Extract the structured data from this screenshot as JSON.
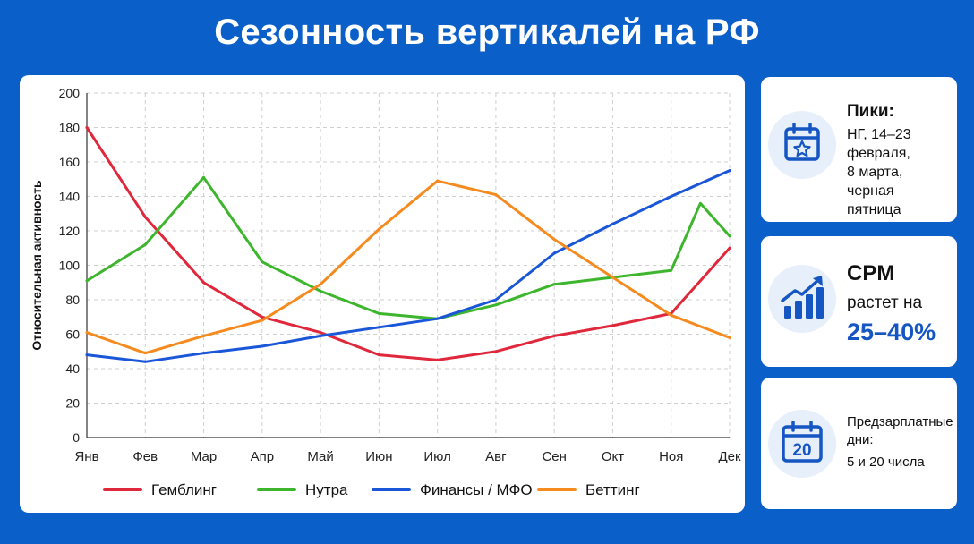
{
  "page": {
    "title": "Сезонность вертикалей на РФ"
  },
  "chart_data": {
    "type": "line",
    "title": "",
    "xlabel": "",
    "ylabel": "Относительная активность",
    "ylim": [
      0,
      200
    ],
    "yticks": [
      0,
      20,
      40,
      60,
      80,
      100,
      120,
      140,
      160,
      180,
      200
    ],
    "grid": true,
    "legend": "bottom",
    "categories": [
      "Янв",
      "Фев",
      "Мар",
      "Апр",
      "Май",
      "Июн",
      "Июл",
      "Авг",
      "Сен",
      "Окт",
      "Ноя",
      "Дек"
    ],
    "series": [
      {
        "name": "Гемблинг",
        "color": "#e0283c",
        "values": [
          180,
          128,
          90,
          70,
          61,
          48,
          45,
          50,
          59,
          65,
          72,
          110
        ]
      },
      {
        "name": "Нутра",
        "color": "#3db52c",
        "values": [
          91,
          112,
          151,
          102,
          85,
          72,
          69,
          77,
          89,
          93,
          97,
          117
        ],
        "extra_points": [
          {
            "x": 10.5,
            "y": 136
          }
        ]
      },
      {
        "name": "Финансы / МФО",
        "color": "#1a56d8",
        "values": [
          48,
          44,
          49,
          53,
          59,
          64,
          69,
          80,
          107,
          124,
          140,
          155
        ]
      },
      {
        "name": "Беттинг",
        "color": "#f58a1f",
        "values": [
          61,
          49,
          59,
          68,
          89,
          121,
          149,
          141,
          115,
          93,
          71,
          58
        ]
      }
    ]
  },
  "cards": {
    "peaks": {
      "icon": "calendar-star-icon",
      "title": "Пики:",
      "lines": [
        "НГ, 14–23",
        "февраля,",
        "8 марта,",
        "черная пятница"
      ]
    },
    "cpm": {
      "icon": "growth-chart-icon",
      "title": "CPM",
      "subtitle": "растет на",
      "value": "25–40%",
      "accent": "#1556c2"
    },
    "payday": {
      "icon": "calendar-20-icon",
      "icon_number": "20",
      "title_lines": [
        "Предзарплатные",
        "дни:"
      ],
      "body": "5 и 20 числа"
    }
  },
  "colors": {
    "background": "#0b5fc9",
    "card": "#ffffff",
    "icon_bg": "#e7effa",
    "icon_fg": "#1556c2"
  }
}
